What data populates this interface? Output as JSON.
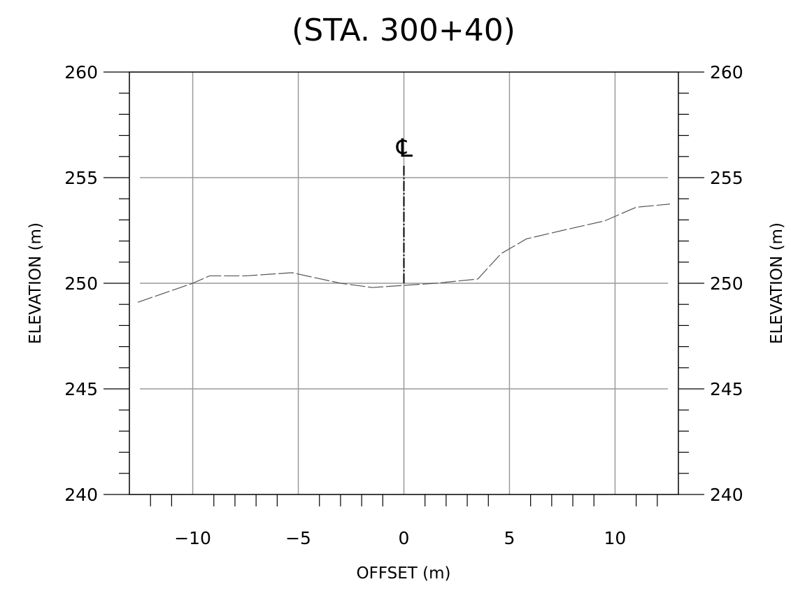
{
  "chart_data": {
    "type": "line",
    "title": "(STA. 300+40)",
    "xlabel": "OFFSET (m)",
    "ylabel": "ELEVATION (m)",
    "xlim": [
      -13,
      13
    ],
    "ylim": [
      240,
      260
    ],
    "x_ticks": [
      -10,
      -5,
      0,
      5,
      10
    ],
    "x_tick_labels": [
      "−10",
      "−5",
      "0",
      "5",
      "10"
    ],
    "y_ticks": [
      240,
      245,
      250,
      255,
      260
    ],
    "y_tick_labels": [
      "240",
      "245",
      "250",
      "255",
      "260"
    ],
    "grid": true,
    "series": [
      {
        "style": "dashed",
        "color": "#555555",
        "x": [
          -12.6,
          -10.0,
          -9.2,
          -7.5,
          -5.3,
          -3.0,
          -1.5,
          0.0,
          1.5,
          3.5,
          4.6,
          5.8,
          7.5,
          9.5,
          11.0,
          12.6
        ],
        "y": [
          249.1,
          250.0,
          250.35,
          250.35,
          250.5,
          250.0,
          249.8,
          249.9,
          250.0,
          250.2,
          251.4,
          252.1,
          252.5,
          252.95,
          253.6,
          253.75
        ]
      }
    ],
    "annotations": [
      {
        "text": "℄",
        "meaning": "centerline",
        "x": 0,
        "y_from": 250,
        "y_to": 255.6
      }
    ]
  }
}
